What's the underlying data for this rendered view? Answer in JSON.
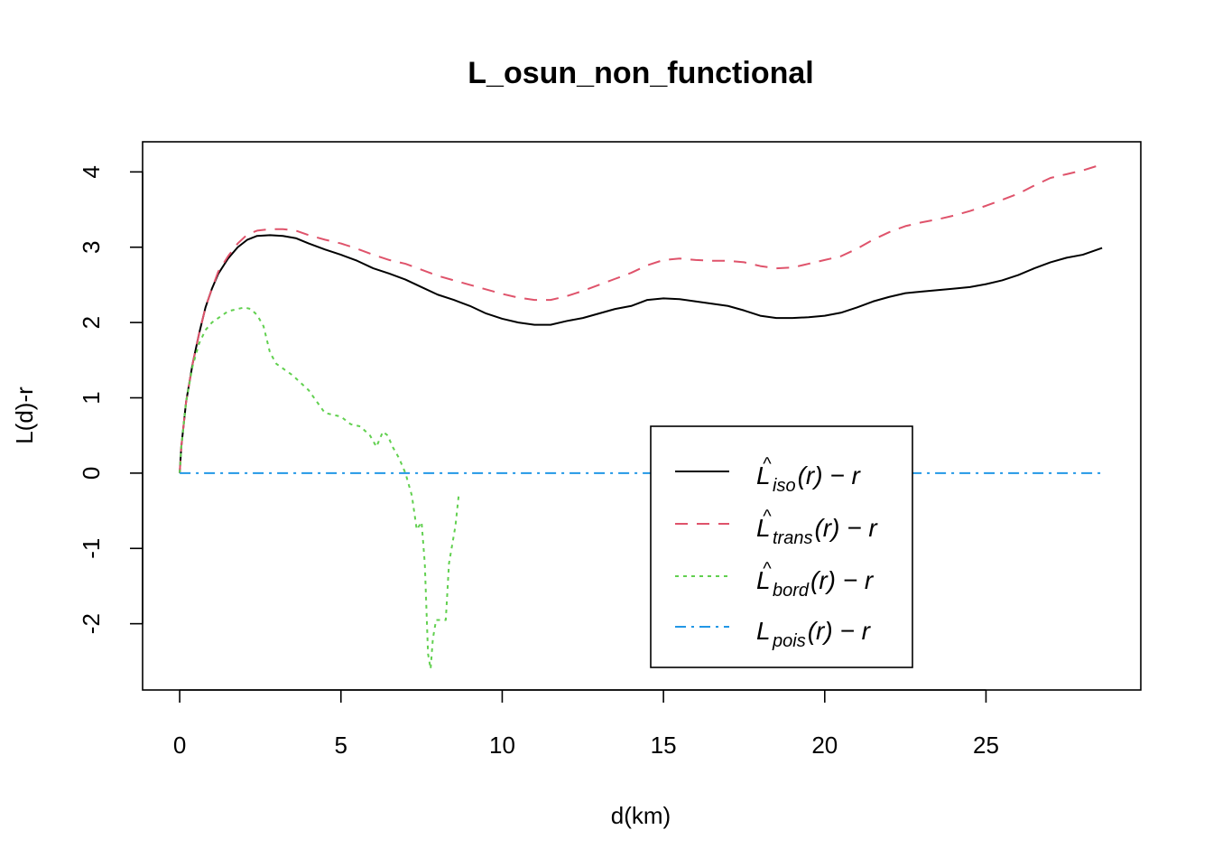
{
  "chart_data": {
    "type": "line",
    "title": "L_osun_non_functional",
    "xlabel": "d(km)",
    "ylabel": "L(d)-r",
    "xlim": [
      -1.15,
      29.8
    ],
    "ylim": [
      -2.88,
      4.4
    ],
    "xticks": [
      "0",
      "5",
      "10",
      "15",
      "20",
      "25"
    ],
    "xtick_values": [
      0,
      5,
      10,
      15,
      20,
      25
    ],
    "yticks": [
      "-2",
      "-1",
      "0",
      "1",
      "2",
      "3",
      "4"
    ],
    "ytick_values": [
      -2,
      -1,
      0,
      1,
      2,
      3,
      4
    ],
    "grid": false,
    "legend_position": "bottom-right",
    "series": [
      {
        "key": "iso",
        "legend": {
          "hat": "^",
          "base": "L",
          "sub": "iso",
          "suffix": "(r) − r"
        },
        "color": "#000000",
        "dash": "none",
        "x": [
          0,
          0.05,
          0.2,
          0.4,
          0.6,
          0.8,
          1.0,
          1.2,
          1.5,
          1.8,
          2.1,
          2.4,
          2.8,
          3.2,
          3.6,
          4.0,
          4.5,
          5.0,
          5.5,
          6.0,
          6.5,
          7.0,
          7.5,
          8.0,
          8.5,
          9.0,
          9.5,
          10.0,
          10.5,
          11.0,
          11.5,
          12.0,
          12.5,
          13.0,
          13.5,
          14.0,
          14.5,
          15.0,
          15.5,
          16.0,
          16.5,
          17.0,
          17.5,
          18.0,
          18.5,
          19.0,
          19.5,
          20.0,
          20.5,
          21.0,
          21.5,
          22.0,
          22.5,
          23.0,
          23.5,
          24.0,
          24.5,
          25.0,
          25.5,
          26.0,
          26.5,
          27.0,
          27.5,
          28.0,
          28.6
        ],
        "y": [
          0,
          0.35,
          0.95,
          1.45,
          1.85,
          2.2,
          2.45,
          2.65,
          2.85,
          3.0,
          3.1,
          3.15,
          3.16,
          3.15,
          3.12,
          3.05,
          2.97,
          2.9,
          2.82,
          2.72,
          2.65,
          2.57,
          2.47,
          2.37,
          2.3,
          2.22,
          2.12,
          2.05,
          2.0,
          1.97,
          1.97,
          2.02,
          2.06,
          2.12,
          2.18,
          2.22,
          2.3,
          2.32,
          2.31,
          2.28,
          2.25,
          2.22,
          2.16,
          2.09,
          2.06,
          2.06,
          2.07,
          2.09,
          2.13,
          2.2,
          2.28,
          2.34,
          2.39,
          2.41,
          2.43,
          2.45,
          2.47,
          2.51,
          2.56,
          2.63,
          2.72,
          2.8,
          2.86,
          2.9,
          2.99
        ]
      },
      {
        "key": "trans",
        "legend": {
          "hat": "^",
          "base": "L",
          "sub": "trans",
          "suffix": "(r) − r"
        },
        "color": "#DF536B",
        "dash": "14,10",
        "x": [
          0,
          0.05,
          0.2,
          0.4,
          0.6,
          0.8,
          1.0,
          1.2,
          1.5,
          1.8,
          2.1,
          2.4,
          2.8,
          3.2,
          3.6,
          4.0,
          4.5,
          5.0,
          5.5,
          6.0,
          6.5,
          7.0,
          7.5,
          8.0,
          8.5,
          9.0,
          9.5,
          10.0,
          10.5,
          11.0,
          11.5,
          12.0,
          12.5,
          13.0,
          13.5,
          14.0,
          14.5,
          15.0,
          15.5,
          16.0,
          16.5,
          17.0,
          17.5,
          18.0,
          18.5,
          19.0,
          19.5,
          20.0,
          20.5,
          21.0,
          21.5,
          22.0,
          22.5,
          23.0,
          23.5,
          24.0,
          24.5,
          25.0,
          25.5,
          26.0,
          26.5,
          27.0,
          27.5,
          28.0,
          28.6
        ],
        "y": [
          0,
          0.35,
          0.95,
          1.45,
          1.85,
          2.2,
          2.45,
          2.68,
          2.88,
          3.05,
          3.17,
          3.22,
          3.24,
          3.24,
          3.22,
          3.16,
          3.1,
          3.05,
          2.98,
          2.9,
          2.83,
          2.78,
          2.7,
          2.62,
          2.56,
          2.5,
          2.44,
          2.38,
          2.33,
          2.3,
          2.3,
          2.35,
          2.42,
          2.5,
          2.58,
          2.66,
          2.76,
          2.83,
          2.85,
          2.83,
          2.82,
          2.82,
          2.8,
          2.75,
          2.72,
          2.73,
          2.78,
          2.83,
          2.88,
          2.98,
          3.1,
          3.2,
          3.28,
          3.33,
          3.37,
          3.42,
          3.48,
          3.55,
          3.63,
          3.71,
          3.82,
          3.92,
          3.97,
          4.02,
          4.1
        ]
      },
      {
        "key": "bord",
        "legend": {
          "hat": "^",
          "base": "L",
          "sub": "bord",
          "suffix": "(r) − r"
        },
        "color": "#61D04F",
        "dash": "4,5",
        "x": [
          0,
          0.05,
          0.2,
          0.4,
          0.6,
          0.8,
          1.0,
          1.2,
          1.5,
          1.8,
          2.0,
          2.2,
          2.4,
          2.6,
          2.8,
          3.0,
          3.5,
          4.0,
          4.5,
          5.0,
          5.3,
          5.6,
          5.9,
          6.1,
          6.3,
          6.45,
          6.6,
          6.8,
          7.0,
          7.2,
          7.35,
          7.5,
          7.6,
          7.7,
          7.78,
          7.85,
          7.95,
          8.1,
          8.25,
          8.35,
          8.45,
          8.55,
          8.65
        ],
        "y": [
          0,
          0.35,
          0.95,
          1.42,
          1.72,
          1.9,
          2.0,
          2.06,
          2.15,
          2.18,
          2.2,
          2.18,
          2.1,
          1.95,
          1.6,
          1.45,
          1.3,
          1.1,
          0.8,
          0.75,
          0.65,
          0.62,
          0.5,
          0.35,
          0.55,
          0.5,
          0.35,
          0.2,
          0.0,
          -0.3,
          -0.75,
          -0.65,
          -1.2,
          -2.4,
          -2.6,
          -2.2,
          -1.95,
          -1.95,
          -1.95,
          -1.2,
          -0.95,
          -0.7,
          -0.3
        ]
      },
      {
        "key": "pois",
        "legend": {
          "hat": "",
          "base": "L",
          "sub": "pois",
          "suffix": "(r) − r"
        },
        "color": "#2297E6",
        "dash": "12,6,3,6",
        "x": [
          0,
          28.6
        ],
        "y": [
          0,
          0
        ]
      }
    ]
  }
}
